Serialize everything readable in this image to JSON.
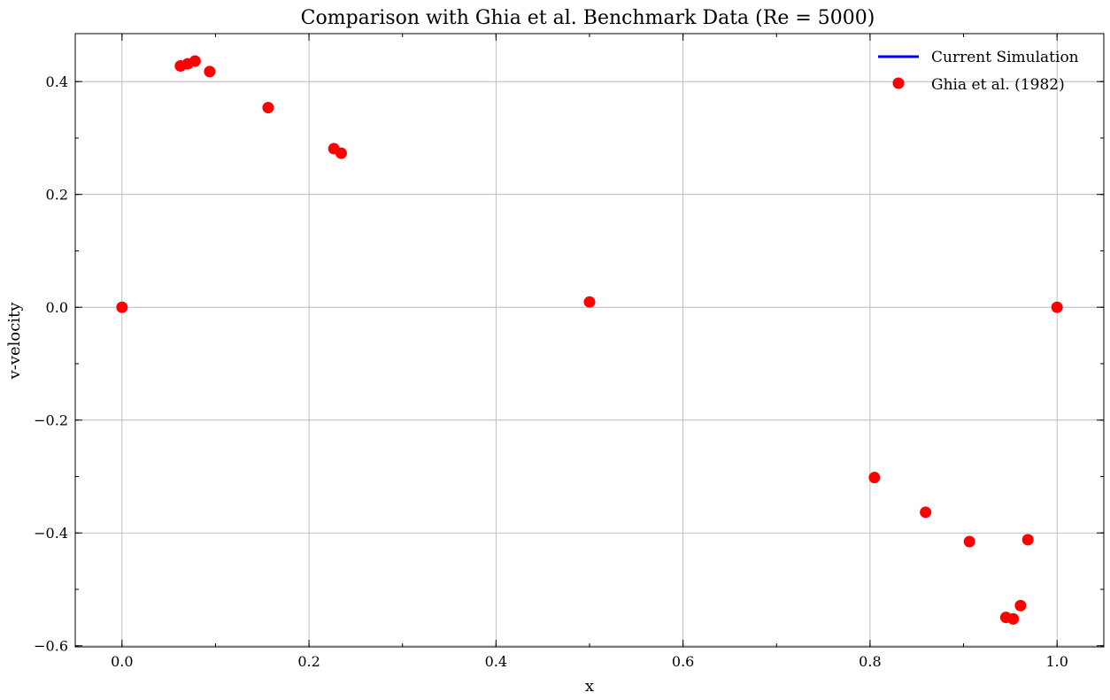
{
  "chart_data": {
    "type": "scatter",
    "title": "Comparison with Ghia et al. Benchmark Data (Re = 5000)",
    "xlabel": "x",
    "ylabel": "v-velocity",
    "xlim": [
      -0.05,
      1.05
    ],
    "ylim": [
      -0.602,
      0.485
    ],
    "x_ticks": [
      0.0,
      0.2,
      0.4,
      0.6,
      0.8,
      1.0
    ],
    "x_tick_labels": [
      "0.0",
      "0.2",
      "0.4",
      "0.6",
      "0.8",
      "1.0"
    ],
    "y_ticks": [
      -0.6,
      -0.4,
      -0.2,
      0.0,
      0.2,
      0.4
    ],
    "y_tick_labels": [
      "−0.6",
      "−0.4",
      "−0.2",
      "0.0",
      "0.2",
      "0.4"
    ],
    "x_minor_step": 0.1,
    "y_minor_step": 0.1,
    "grid": true,
    "legend_position": "top-right",
    "series": [
      {
        "name": "Current Simulation",
        "kind": "line",
        "color": "#0000ff",
        "x": [],
        "y": []
      },
      {
        "name": "Ghia et al. (1982)",
        "kind": "marker",
        "color": "#ff0000",
        "x": [
          0.0,
          0.0625,
          0.0703,
          0.0781,
          0.0938,
          0.1563,
          0.2266,
          0.2344,
          0.5,
          0.8047,
          0.8594,
          0.9063,
          0.9453,
          0.9531,
          0.9609,
          0.9688,
          1.0
        ],
        "y": [
          0.0,
          0.4278,
          0.4315,
          0.4364,
          0.4177,
          0.3538,
          0.281,
          0.2731,
          0.0094,
          -0.3019,
          -0.3633,
          -0.4153,
          -0.5497,
          -0.5524,
          -0.5289,
          -0.412,
          0.0
        ]
      }
    ]
  }
}
